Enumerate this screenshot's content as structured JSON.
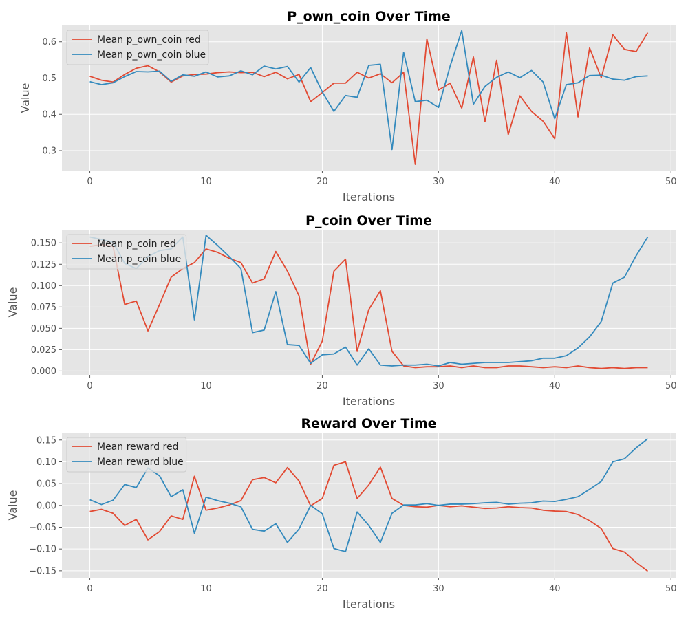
{
  "chart_data": [
    {
      "type": "line",
      "title": "P_own_coin Over Time",
      "xlabel": "Iterations",
      "ylabel": "Value",
      "xlim": [
        -2.4,
        50.4
      ],
      "ylim": [
        0.245,
        0.645
      ],
      "xticks": [
        0,
        10,
        20,
        30,
        40,
        50
      ],
      "yticks": [
        0.3,
        0.4,
        0.5,
        0.6
      ],
      "ytick_decimals": 1,
      "grid": true,
      "legend": "top-left",
      "series": [
        {
          "name": "Mean p_own_coin red",
          "color": "#e24a33",
          "values": [
            0.505,
            0.494,
            0.489,
            0.51,
            0.527,
            0.534,
            0.517,
            0.489,
            0.506,
            0.51,
            0.511,
            0.515,
            0.517,
            0.515,
            0.516,
            0.504,
            0.516,
            0.498,
            0.51,
            0.435,
            0.46,
            0.486,
            0.486,
            0.516,
            0.5,
            0.512,
            0.487,
            0.516,
            0.262,
            0.608,
            0.467,
            0.486,
            0.417,
            0.558,
            0.38,
            0.549,
            0.344,
            0.451,
            0.408,
            0.381,
            0.333,
            0.625,
            0.393,
            0.583,
            0.501,
            0.619,
            0.579,
            0.573,
            0.625
          ]
        },
        {
          "name": "Mean p_own_coin blue",
          "color": "#348abd",
          "values": [
            0.49,
            0.482,
            0.487,
            0.504,
            0.518,
            0.517,
            0.519,
            0.491,
            0.509,
            0.505,
            0.517,
            0.503,
            0.506,
            0.52,
            0.509,
            0.533,
            0.525,
            0.532,
            0.489,
            0.529,
            0.462,
            0.408,
            0.452,
            0.447,
            0.535,
            0.538,
            0.303,
            0.571,
            0.435,
            0.439,
            0.419,
            0.533,
            0.631,
            0.428,
            0.477,
            0.502,
            0.517,
            0.501,
            0.521,
            0.489,
            0.388,
            0.482,
            0.487,
            0.507,
            0.508,
            0.497,
            0.494,
            0.504,
            0.506
          ]
        }
      ]
    },
    {
      "type": "line",
      "title": "P_coin Over Time",
      "xlabel": "Iterations",
      "ylabel": "Value",
      "xlim": [
        -2.4,
        50.4
      ],
      "ylim": [
        -0.0045,
        0.1655
      ],
      "xticks": [
        0,
        10,
        20,
        30,
        40,
        50
      ],
      "yticks": [
        0.0,
        0.025,
        0.05,
        0.075,
        0.1,
        0.125,
        0.15
      ],
      "ytick_decimals": 3,
      "grid": true,
      "legend": "top-left",
      "series": [
        {
          "name": "Mean p_coin red",
          "color": "#e24a33",
          "values": [
            0.146,
            0.148,
            0.146,
            0.078,
            0.082,
            0.047,
            0.078,
            0.11,
            0.12,
            0.127,
            0.143,
            0.139,
            0.132,
            0.127,
            0.103,
            0.108,
            0.14,
            0.117,
            0.088,
            0.008,
            0.035,
            0.117,
            0.131,
            0.023,
            0.072,
            0.094,
            0.023,
            0.006,
            0.004,
            0.005,
            0.005,
            0.006,
            0.004,
            0.006,
            0.004,
            0.004,
            0.006,
            0.006,
            0.005,
            0.004,
            0.005,
            0.004,
            0.006,
            0.004,
            0.003,
            0.004,
            0.003,
            0.004,
            0.004
          ]
        },
        {
          "name": "Mean p_coin blue",
          "color": "#348abd",
          "values": [
            0.157,
            0.154,
            0.151,
            0.126,
            0.12,
            0.134,
            0.141,
            0.143,
            0.157,
            0.06,
            0.159,
            0.147,
            0.134,
            0.12,
            0.045,
            0.048,
            0.093,
            0.031,
            0.03,
            0.009,
            0.019,
            0.02,
            0.028,
            0.007,
            0.026,
            0.007,
            0.006,
            0.007,
            0.007,
            0.008,
            0.006,
            0.01,
            0.008,
            0.009,
            0.01,
            0.01,
            0.01,
            0.011,
            0.012,
            0.015,
            0.015,
            0.018,
            0.027,
            0.04,
            0.058,
            0.103,
            0.11,
            0.135,
            0.157
          ]
        }
      ]
    },
    {
      "type": "line",
      "title": "Reward Over Time",
      "xlabel": "Iterations",
      "ylabel": "Value",
      "xlim": [
        -2.4,
        50.4
      ],
      "ylim": [
        -0.166,
        0.167
      ],
      "xticks": [
        0,
        10,
        20,
        30,
        40,
        50
      ],
      "yticks": [
        -0.15,
        -0.1,
        -0.05,
        0.0,
        0.05,
        0.1,
        0.15
      ],
      "ytick_decimals": 2,
      "grid": true,
      "legend": "top-left",
      "series": [
        {
          "name": "Mean reward red",
          "color": "#e24a33",
          "values": [
            -0.014,
            -0.009,
            -0.018,
            -0.046,
            -0.032,
            -0.079,
            -0.06,
            -0.024,
            -0.032,
            0.067,
            -0.011,
            -0.006,
            0.001,
            0.011,
            0.059,
            0.064,
            0.052,
            0.087,
            0.056,
            -0.001,
            0.016,
            0.092,
            0.1,
            0.016,
            0.047,
            0.088,
            0.016,
            0.0,
            -0.003,
            -0.004,
            0.0,
            -0.003,
            -0.001,
            -0.004,
            -0.007,
            -0.006,
            -0.003,
            -0.005,
            -0.006,
            -0.011,
            -0.013,
            -0.014,
            -0.021,
            -0.035,
            -0.053,
            -0.099,
            -0.107,
            -0.131,
            -0.151
          ]
        },
        {
          "name": "Mean reward blue",
          "color": "#348abd",
          "values": [
            0.013,
            0.002,
            0.012,
            0.048,
            0.041,
            0.086,
            0.068,
            0.02,
            0.036,
            -0.064,
            0.019,
            0.011,
            0.005,
            -0.003,
            -0.055,
            -0.059,
            -0.042,
            -0.085,
            -0.054,
            0.0,
            -0.019,
            -0.099,
            -0.106,
            -0.015,
            -0.046,
            -0.085,
            -0.018,
            0.001,
            0.001,
            0.004,
            0.0,
            0.003,
            0.003,
            0.004,
            0.006,
            0.007,
            0.003,
            0.005,
            0.006,
            0.01,
            0.009,
            0.014,
            0.02,
            0.037,
            0.055,
            0.1,
            0.107,
            0.132,
            0.153
          ]
        }
      ]
    }
  ]
}
